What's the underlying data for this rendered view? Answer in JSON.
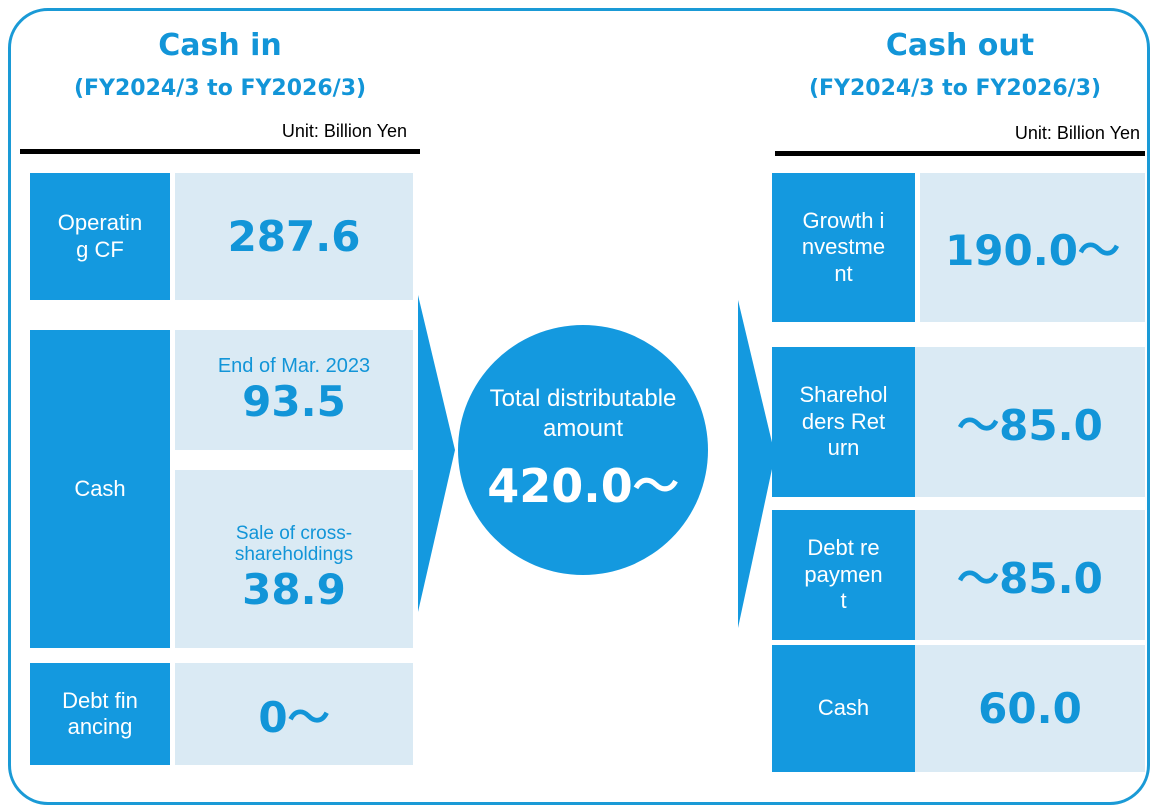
{
  "cash_in": {
    "title": "Cash in",
    "period": "(FY2024/3 to FY2026/3)",
    "unit": "Unit: Billion Yen",
    "items": [
      {
        "label": "Operating CF",
        "value": "287.6"
      },
      {
        "label": "Cash",
        "parts": [
          {
            "caption": "End of Mar. 2023",
            "value": "93.5"
          },
          {
            "caption": "Sale of cross-shareholdings",
            "value": "38.9"
          }
        ]
      },
      {
        "label": "Debt financing",
        "value": "0～"
      }
    ]
  },
  "center": {
    "label": "Total distributable amount",
    "value": "420.0～"
  },
  "cash_out": {
    "title": "Cash out",
    "period": "(FY2024/3 to FY2026/3)",
    "unit": "Unit: Billion Yen",
    "items": [
      {
        "label": "Growth investment",
        "value": "190.0～"
      },
      {
        "label": "Shareholders Return",
        "value": "～85.0"
      },
      {
        "label": "Debt repayment",
        "value": "～85.0"
      },
      {
        "label": "Cash",
        "value": "60.0"
      }
    ]
  }
}
